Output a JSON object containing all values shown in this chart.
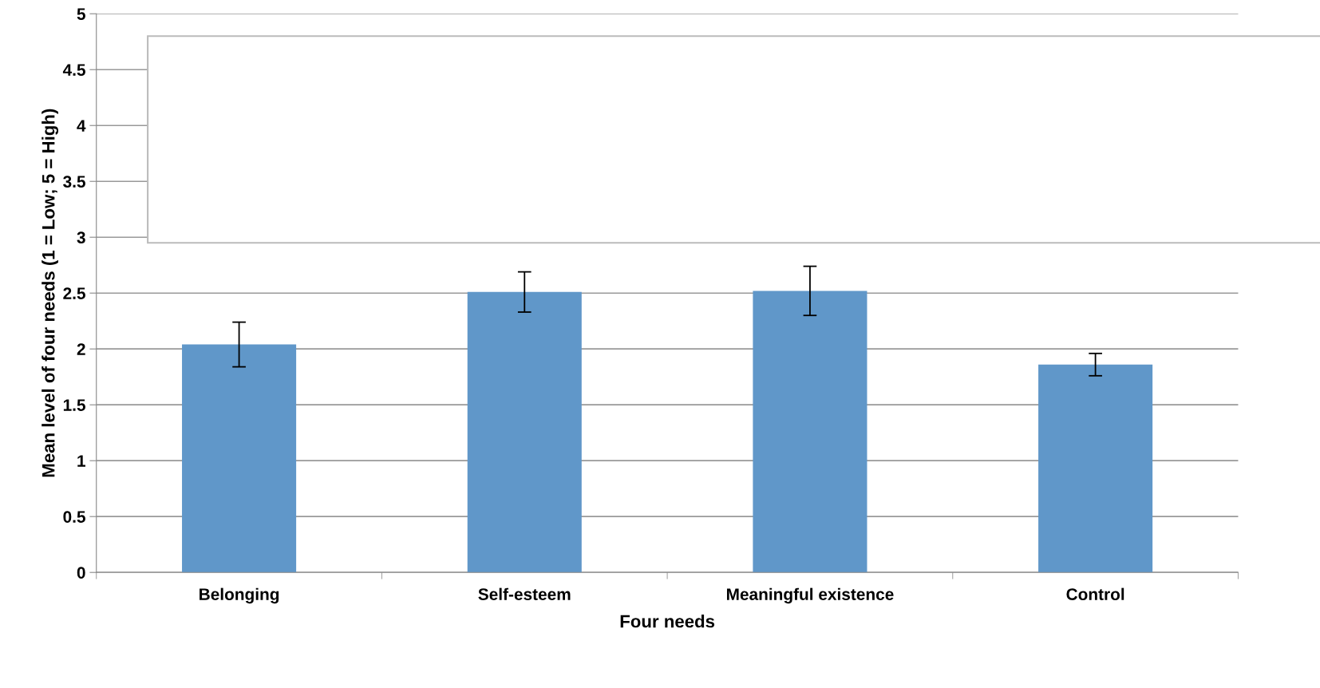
{
  "chart_data": {
    "type": "bar",
    "xlabel": "Four needs",
    "ylabel": "Mean level of four needs (1 = Low; 5 = High)",
    "categories": [
      "Belonging",
      "Self-esteem",
      "Meaningful existence",
      "Control"
    ],
    "values": [
      2.04,
      2.51,
      2.52,
      1.86
    ],
    "errors": [
      0.2,
      0.18,
      0.22,
      0.1
    ],
    "color": "#6097c9",
    "ylim": [
      0,
      5
    ],
    "yticks": [
      0,
      0.5,
      1,
      1.5,
      2,
      2.5,
      3,
      3.5,
      4,
      4.5,
      5
    ],
    "grid": "y"
  }
}
